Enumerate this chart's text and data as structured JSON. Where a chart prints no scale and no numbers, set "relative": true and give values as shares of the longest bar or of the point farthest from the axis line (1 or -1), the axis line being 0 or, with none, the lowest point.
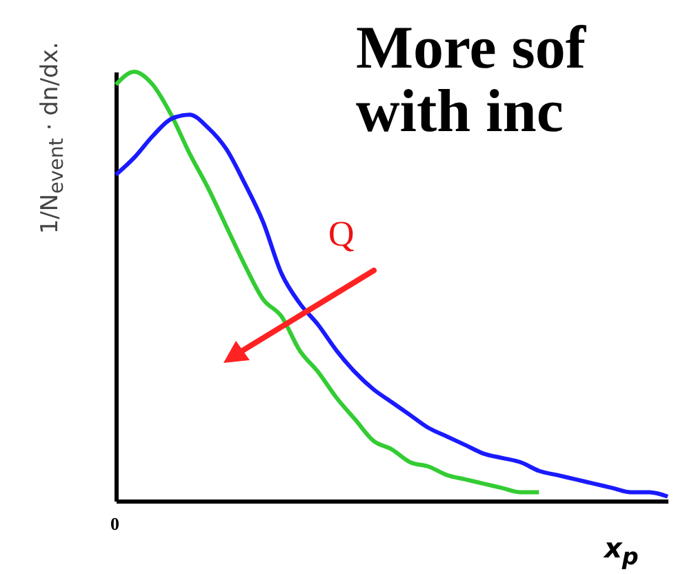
{
  "chart_data": {
    "type": "line",
    "relative": true,
    "title": "More sof",
    "subtitle": "with inc",
    "ylabel": "1/N$_{event}$ · dn/dx.",
    "xlabel": "x$_{p}$",
    "annotations": [
      "Q",
      "0"
    ],
    "categories": [
      null,
      null,
      null,
      null,
      null,
      null,
      null,
      null,
      null,
      null,
      null,
      null,
      null,
      null,
      null,
      null,
      null,
      null,
      null,
      null,
      null,
      null,
      null,
      null,
      null,
      null,
      null,
      null,
      null,
      null,
      null
    ],
    "series": [
      {
        "color": "#33cc33",
        "values": [
          0.97,
          1.0,
          0.97,
          0.9,
          0.81,
          0.73,
          0.64,
          0.55,
          0.47,
          0.43,
          0.35,
          0.3,
          0.24,
          0.19,
          0.14,
          0.12,
          0.09,
          0.08,
          0.06,
          0.05,
          0.04,
          0.03,
          0.02,
          0.02,
          null,
          null,
          null,
          null,
          null,
          null,
          null
        ]
      },
      {
        "color": "#1a1aff",
        "values": [
          0.76,
          0.8,
          0.85,
          0.89,
          0.9,
          0.87,
          0.82,
          0.74,
          0.65,
          0.53,
          0.46,
          0.41,
          0.35,
          0.3,
          0.26,
          0.23,
          0.2,
          0.17,
          0.15,
          0.13,
          0.11,
          0.1,
          0.09,
          0.07,
          0.06,
          0.05,
          0.04,
          0.03,
          0.02,
          0.02,
          0.01
        ]
      }
    ],
    "legend": false,
    "grid": false
  }
}
